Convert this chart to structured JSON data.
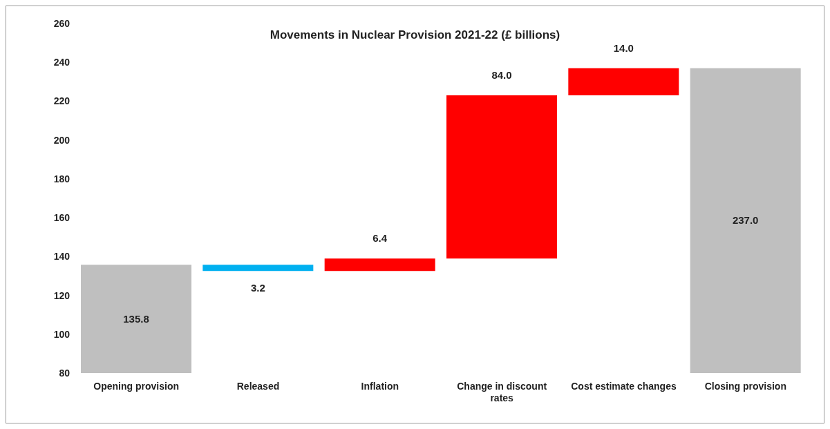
{
  "chart_data": {
    "type": "bar",
    "title": "Movements in Nuclear Provision 2021-22 (£ billions)",
    "categories": [
      "Opening provision",
      "Released",
      "Inflation",
      "Change in discount rates",
      "Cost estimate changes",
      "Closing provision"
    ],
    "values": [
      135.8,
      -3.2,
      6.4,
      84.0,
      14.0,
      237.0
    ],
    "base": [
      null,
      135.8,
      132.6,
      139.0,
      223.0,
      null
    ],
    "colors": [
      "#bfbfbf",
      "#00b0f0",
      "#ff0000",
      "#ff0000",
      "#ff0000",
      "#bfbfbf"
    ],
    "value_labels": [
      "135.8",
      "3.2",
      "6.4",
      "84.0",
      "14.0",
      "237.0"
    ],
    "ylim": [
      80,
      260
    ],
    "yticks": [
      80,
      100,
      120,
      140,
      160,
      180,
      200,
      220,
      240,
      260
    ],
    "grid": false,
    "legend": false
  }
}
